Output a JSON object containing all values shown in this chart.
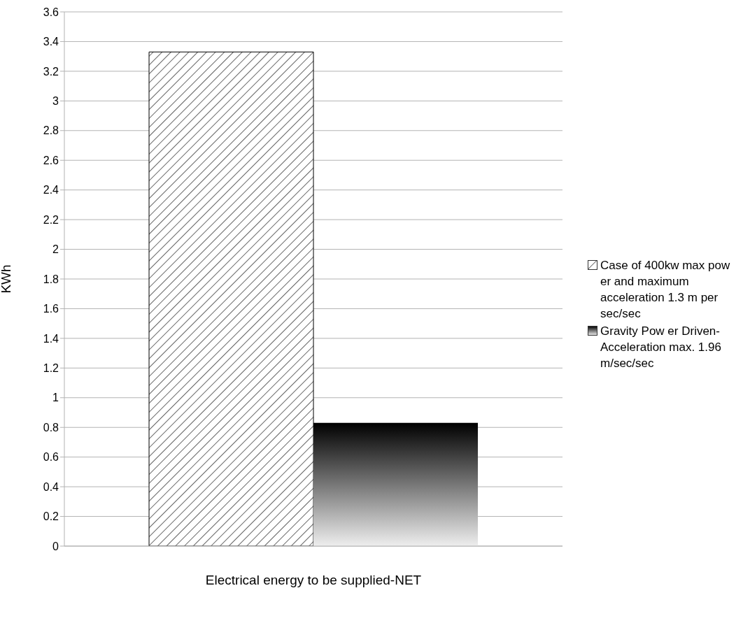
{
  "chart_data": {
    "type": "bar",
    "xlabel": "Electrical energy to be supplied-NET",
    "ylabel": "KWh",
    "categories": [
      null
    ],
    "series": [
      {
        "name": "Case of 400kw  max pow er and maximum acceleration 1.3 m per sec/sec",
        "color": "#000000",
        "values": [
          3.33
        ]
      },
      {
        "name": "Gravity Pow er Driven-Acceleration max. 1.96 m/sec/sec",
        "color": "#000000",
        "values": [
          0.83
        ]
      }
    ],
    "ylim": [
      0,
      3.6
    ],
    "yticks": [
      0,
      0.2,
      0.4,
      0.6,
      0.8,
      1,
      1.2,
      1.4,
      1.6,
      1.8,
      2,
      2.2,
      2.4,
      2.6,
      2.8,
      3,
      3.2,
      3.4,
      3.6
    ],
    "grid": "y",
    "legend": "right"
  }
}
